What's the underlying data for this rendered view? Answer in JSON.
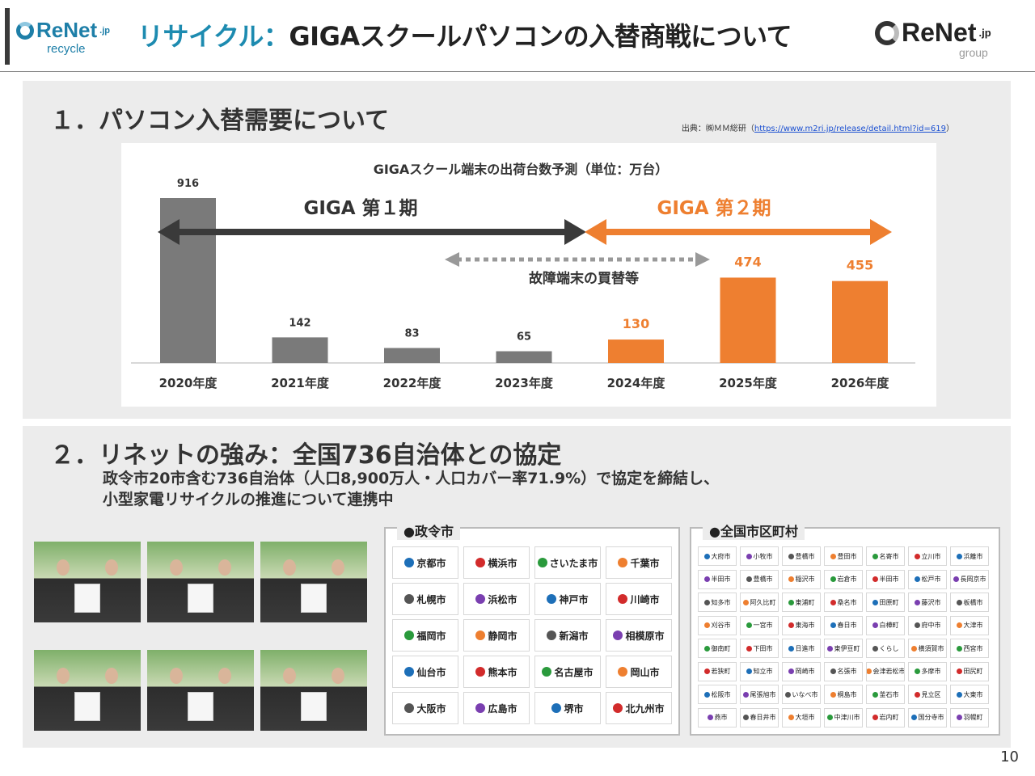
{
  "header": {
    "logo_left": {
      "brand": "ReNet",
      "suffix": ".jp",
      "sub": "recycle"
    },
    "title_accent": "リサイクル：",
    "title_rest": "GIGAスクールパソコンの入替商戦について",
    "logo_right": {
      "brand": "ReNet",
      "suffix": ".jp",
      "sub": "group"
    }
  },
  "section1": {
    "title": "１．パソコン入替需要について",
    "source_prefix": "出典：㈱ＭＭ総研（",
    "source_url": "https://www.m2ri.jp/release/detail.html?id=619",
    "source_suffix": "）"
  },
  "chart_data": {
    "type": "bar",
    "title": "GIGAスクール端末の出荷台数予測（単位：万台）",
    "categories": [
      "2020年度",
      "2021年度",
      "2022年度",
      "2023年度",
      "2024年度",
      "2025年度",
      "2026年度"
    ],
    "values": [
      916,
      142,
      83,
      65,
      130,
      474,
      455
    ],
    "colors": [
      "#7a7a7a",
      "#7a7a7a",
      "#7a7a7a",
      "#7a7a7a",
      "#ee7f30",
      "#ee7f30",
      "#ee7f30"
    ],
    "label_colors": [
      "#333333",
      "#333333",
      "#333333",
      "#333333",
      "#ee7f30",
      "#ee7f30",
      "#ee7f30"
    ],
    "ylim": [
      0,
      916
    ],
    "annotations": {
      "phase1": "GIGA 第１期",
      "phase2": "GIGA 第２期",
      "replacement": "故障端末の買替等"
    },
    "phase1_color": "#3a3a3a",
    "phase2_color": "#ee7f30"
  },
  "section2": {
    "title": "２．リネットの強み：全国736自治体との協定",
    "desc_line1": "政令市20市含む736自治体（人口8,900万人・人口カバー率71.9%）で協定を締結し、",
    "desc_line2": "小型家電リサイクルの推進について連携中",
    "designated_label": "●政令市",
    "designated_cities": [
      "京都市",
      "横浜市",
      "さいたま市",
      "千葉市",
      "札幌市",
      "浜松市",
      "神戸市",
      "川崎市",
      "福岡市",
      "静岡市",
      "新潟市",
      "相模原市",
      "仙台市",
      "熊本市",
      "名古屋市",
      "岡山市",
      "大阪市",
      "広島市",
      "堺市",
      "北九州市"
    ],
    "nationwide_label": "●全国市区町村",
    "nationwide_cities": [
      "大府市",
      "小牧市",
      "豊橋市",
      "豊田市",
      "名寄市",
      "立川市",
      "浜離市",
      "半田市",
      "豊橋市",
      "稲沢市",
      "岩倉市",
      "半田市",
      "松戸市",
      "長岡京市",
      "知多市",
      "阿久比町",
      "東浦町",
      "桑名市",
      "田原町",
      "藤沢市",
      "板橋市",
      "刈谷市",
      "一宮市",
      "東海市",
      "春日市",
      "白樺町",
      "府中市",
      "大津市",
      "御南町",
      "下田市",
      "日進市",
      "東伊豆町",
      "くらし",
      "横須賀市",
      "西宮市",
      "若狭町",
      "知立市",
      "岡崎市",
      "名張市",
      "会津若松市",
      "多摩市",
      "田尻町",
      "松阪市",
      "尾張旭市",
      "いなべ市",
      "桐島市",
      "釜石市",
      "見立区",
      "大東市",
      "燕市",
      "春日井市",
      "大垣市",
      "中津川市",
      "岩内町",
      "国分寺市",
      "羽幌町"
    ]
  },
  "page_number": "10"
}
